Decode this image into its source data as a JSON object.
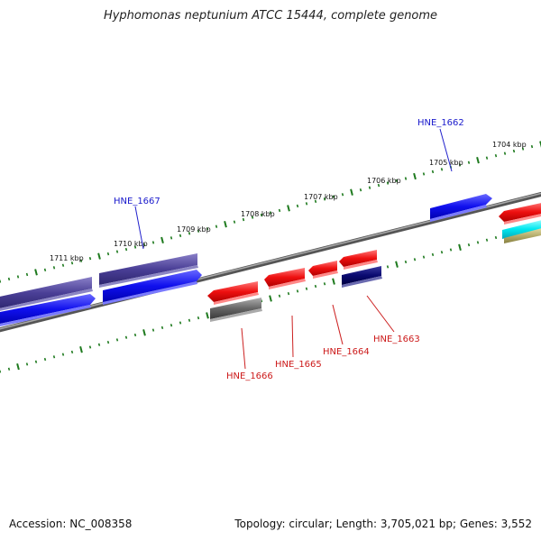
{
  "title": "Hyphomonas neptunium ATCC 15444, complete genome",
  "accession": "Accession: NC_008358",
  "stats": "Topology: circular; Length: 3,705,021 bp; Genes: 3,552",
  "kbp_labels": [
    "1711 kbp",
    "1710 kbp",
    "1709 kbp",
    "1708 kbp",
    "1707 kbp",
    "1706 kbp",
    "1705 kbp",
    "1704 kbp"
  ],
  "gene_labels": {
    "hne_1667": "HNE_1667",
    "hne_1662": "HNE_1662",
    "hne_1666": "HNE_1666",
    "hne_1665": "HNE_1665",
    "hne_1664": "HNE_1664",
    "hne_1663": "HNE_1663"
  },
  "colors": {
    "backbone": "#777777",
    "tick": "#1e7a1e",
    "forward_gene_label": "#1a1acc",
    "reverse_gene_label": "#cc1a1a"
  }
}
